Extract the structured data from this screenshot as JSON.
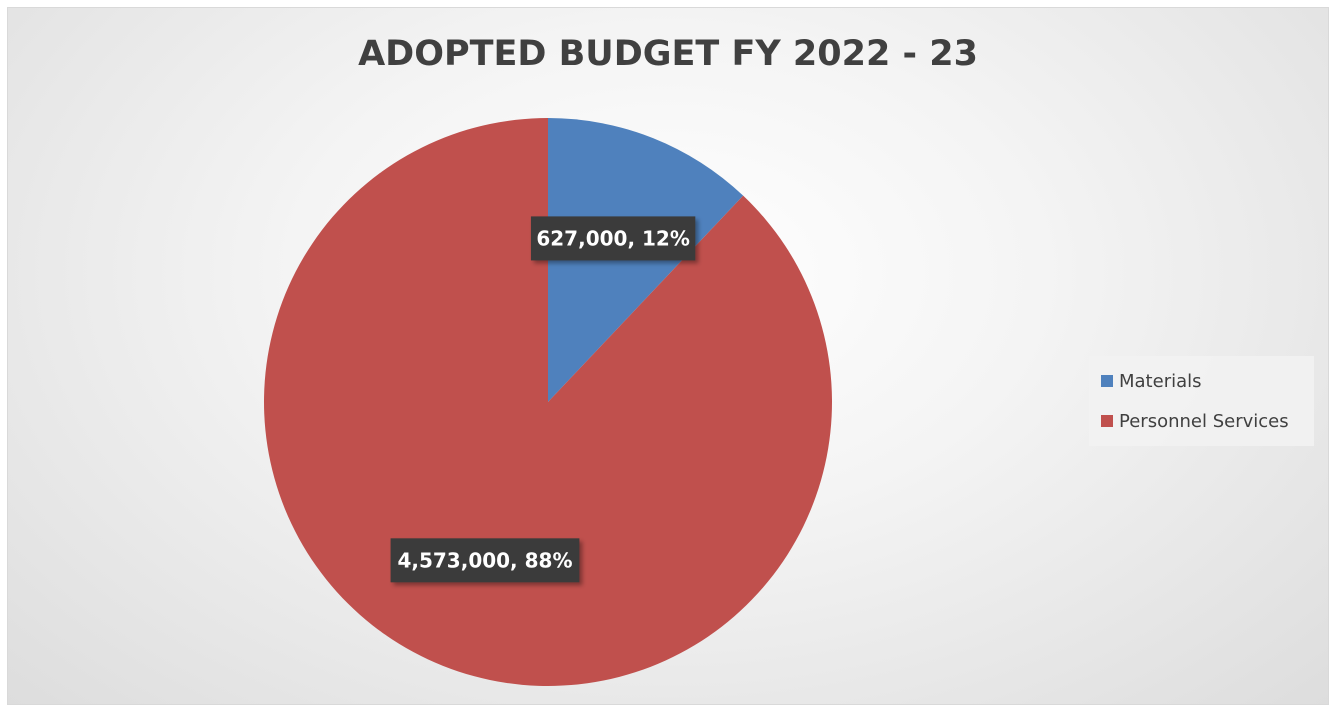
{
  "chart_data": {
    "type": "pie",
    "title": "ADOPTED BUDGET FY 2022 - 23",
    "slices": [
      {
        "name": "Materials",
        "value": 627000,
        "value_label": "627,000",
        "percent_label": "12%",
        "color": "#4f81bd"
      },
      {
        "name": "Personnel Services",
        "value": 4573000,
        "value_label": "4,573,000",
        "percent_label": "88%",
        "color": "#c0504d"
      }
    ],
    "legend_position": "right",
    "start_angle": "12 o'clock",
    "direction": "clockwise"
  }
}
